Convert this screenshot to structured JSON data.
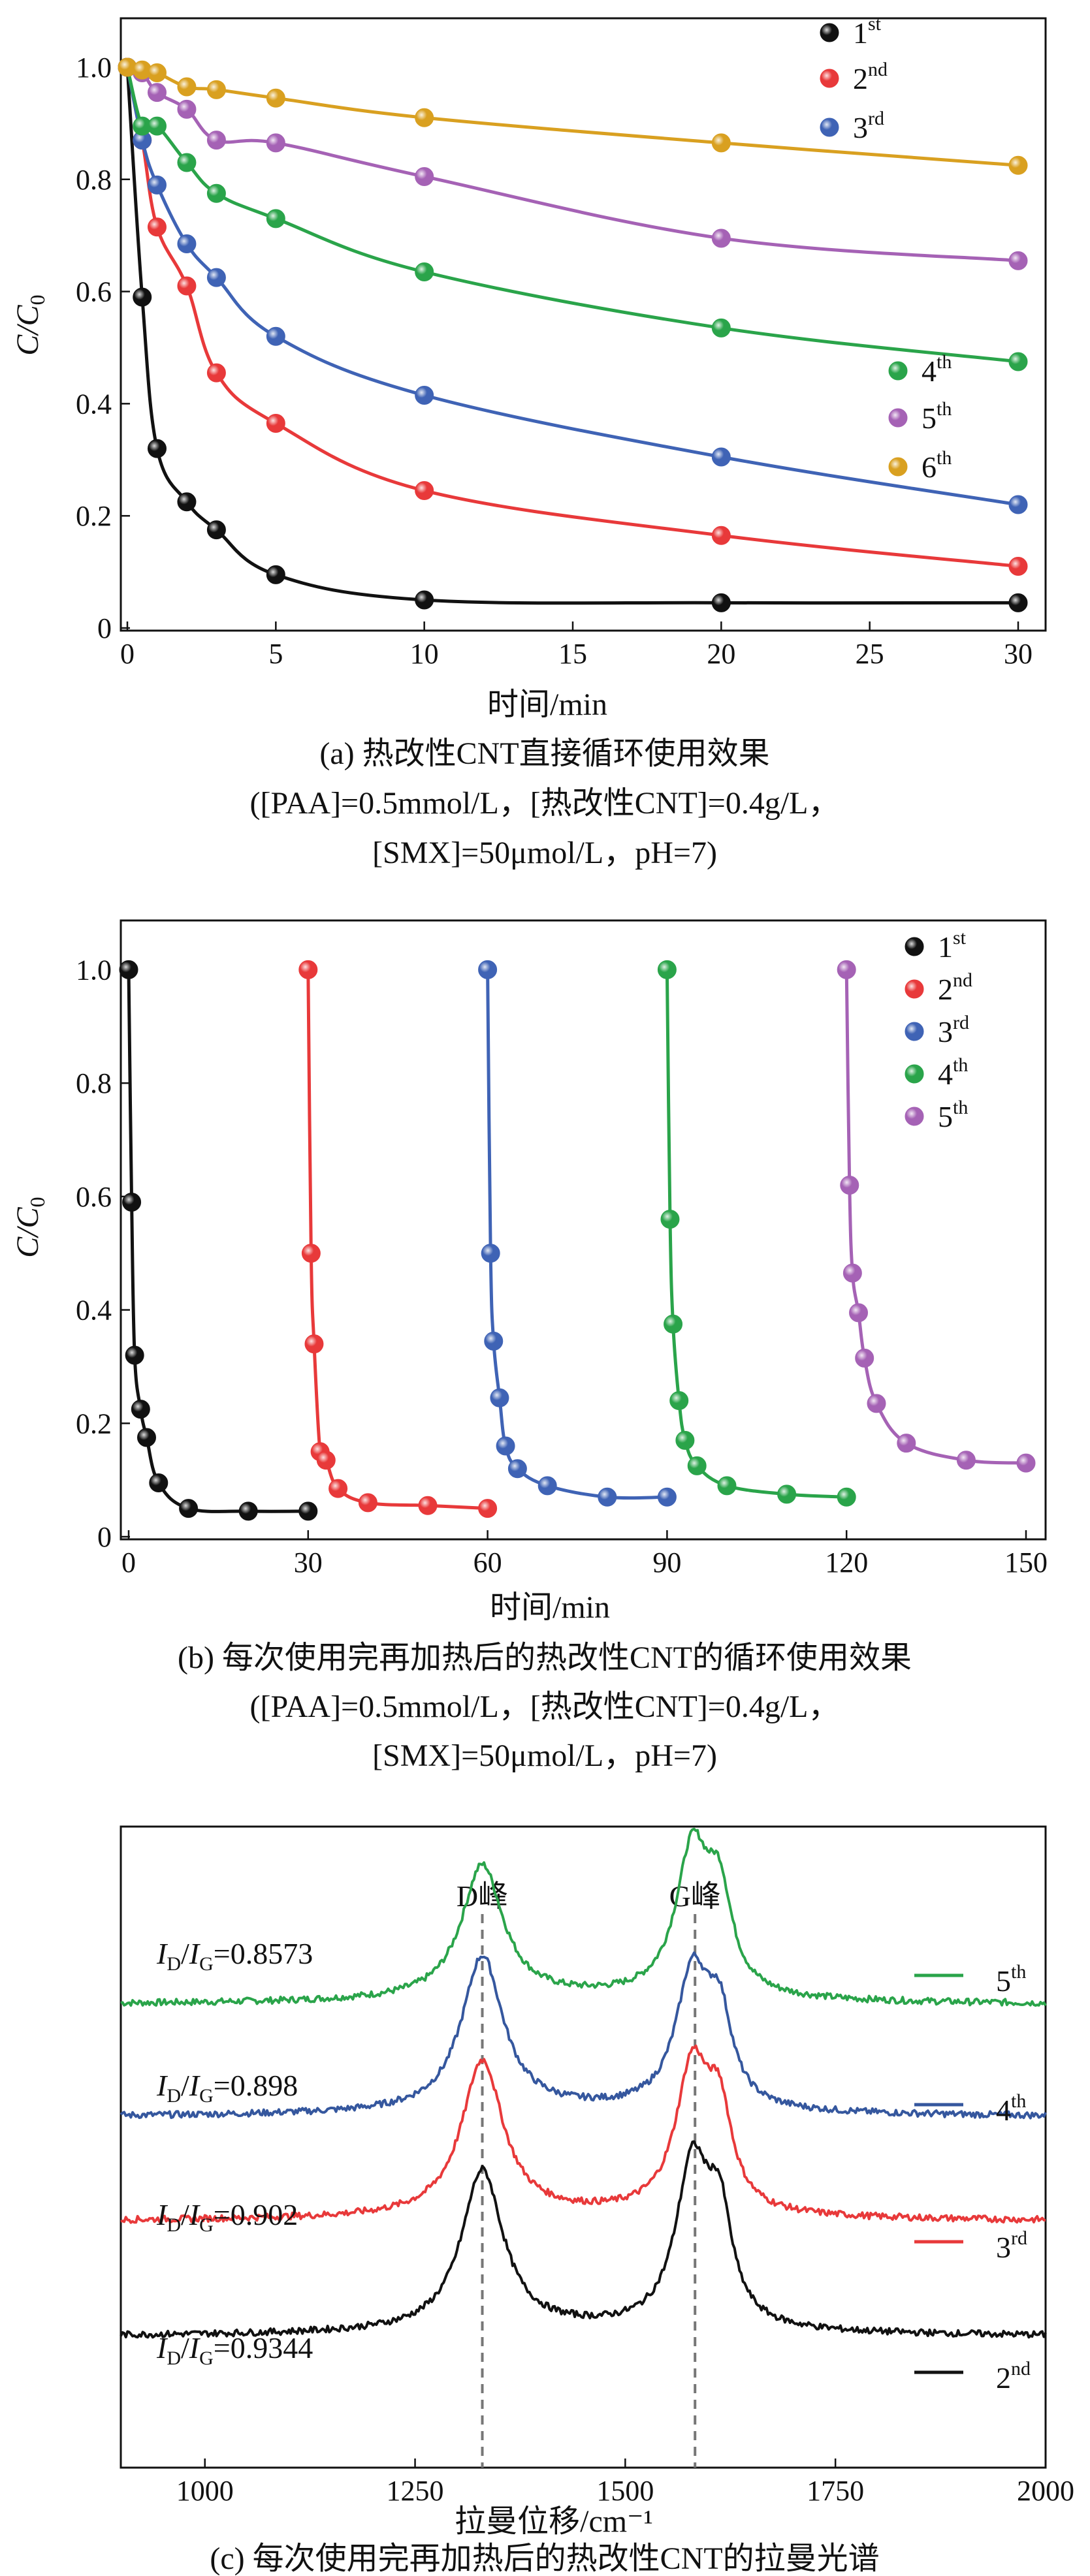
{
  "chart_data": [
    {
      "type": "line",
      "panel": "a",
      "title": "(a) 热改性CNT直接循环使用效果",
      "subtitle_line1": "([PAA]=0.5mmol/L，[热改性CNT]=0.4g/L，",
      "subtitle_line2": "[SMX]=50μmol/L，pH=7)",
      "xlabel": "时间/min",
      "ylabel_main": "C/C",
      "ylabel_sub": "0",
      "xlim": [
        0,
        30
      ],
      "ylim": [
        0,
        1.05
      ],
      "xticks": [
        0,
        5,
        10,
        15,
        20,
        25,
        30
      ],
      "yticks": [
        0,
        0.2,
        0.4,
        0.6,
        0.8,
        1.0
      ],
      "xtick_labels": [
        "0",
        "5",
        "10",
        "15",
        "20",
        "25",
        "30"
      ],
      "ytick_labels": [
        "0",
        "0.2",
        "0.4",
        "0.6",
        "0.8",
        "1.0"
      ],
      "series": [
        {
          "name": "1",
          "sup": "st",
          "color": "#111111",
          "x": [
            0,
            0.5,
            1,
            2,
            3,
            5,
            10,
            20,
            30
          ],
          "y": [
            1.0,
            0.59,
            0.32,
            0.225,
            0.175,
            0.095,
            0.05,
            0.045,
            0.045
          ]
        },
        {
          "name": "2",
          "sup": "nd",
          "color": "#e8393a",
          "x": [
            0,
            0.5,
            1,
            2,
            3,
            5,
            10,
            20,
            30
          ],
          "y": [
            1.0,
            0.87,
            0.715,
            0.61,
            0.455,
            0.365,
            0.245,
            0.165,
            0.11
          ]
        },
        {
          "name": "3",
          "sup": "rd",
          "color": "#3f63b5",
          "x": [
            0,
            0.5,
            1,
            2,
            3,
            5,
            10,
            20,
            30
          ],
          "y": [
            1.0,
            0.87,
            0.79,
            0.685,
            0.625,
            0.52,
            0.415,
            0.305,
            0.22
          ]
        },
        {
          "name": "4",
          "sup": "th",
          "color": "#2aa44a",
          "x": [
            0,
            0.5,
            1,
            2,
            3,
            5,
            10,
            20,
            30
          ],
          "y": [
            1.0,
            0.895,
            0.895,
            0.83,
            0.775,
            0.73,
            0.635,
            0.535,
            0.475
          ]
        },
        {
          "name": "5",
          "sup": "th",
          "color": "#a562b5",
          "x": [
            0,
            0.5,
            1,
            2,
            3,
            5,
            10,
            20,
            30
          ],
          "y": [
            1.0,
            0.99,
            0.955,
            0.925,
            0.87,
            0.865,
            0.805,
            0.695,
            0.655
          ]
        },
        {
          "name": "6",
          "sup": "th",
          "color": "#d9a020",
          "x": [
            0,
            0.5,
            1,
            2,
            3,
            5,
            10,
            20,
            30
          ],
          "y": [
            1.0,
            0.995,
            0.99,
            0.965,
            0.96,
            0.945,
            0.91,
            0.865,
            0.825
          ]
        }
      ]
    },
    {
      "type": "line",
      "panel": "b",
      "title": "(b) 每次使用完再加热后的热改性CNT的循环使用效果",
      "subtitle_line1": "([PAA]=0.5mmol/L，[热改性CNT]=0.4g/L，",
      "subtitle_line2": "[SMX]=50μmol/L，pH=7)",
      "xlabel": "时间/min",
      "ylabel_main": "C/C",
      "ylabel_sub": "0",
      "xlim": [
        0,
        150
      ],
      "ylim": [
        0,
        1.05
      ],
      "xticks": [
        0,
        30,
        60,
        90,
        120,
        150
      ],
      "yticks": [
        0,
        0.2,
        0.4,
        0.6,
        0.8,
        1.0
      ],
      "xtick_labels": [
        "0",
        "30",
        "60",
        "90",
        "120",
        "150"
      ],
      "ytick_labels": [
        "0",
        "0.2",
        "0.4",
        "0.6",
        "0.8",
        "1.0"
      ],
      "series": [
        {
          "name": "1",
          "sup": "st",
          "color": "#111111",
          "x": [
            0,
            0.5,
            1,
            2,
            3,
            5,
            10,
            20,
            30
          ],
          "y": [
            1.0,
            0.59,
            0.32,
            0.225,
            0.175,
            0.095,
            0.05,
            0.045,
            0.045
          ]
        },
        {
          "name": "2",
          "sup": "nd",
          "color": "#e8393a",
          "x": [
            30,
            30.5,
            31,
            32,
            33,
            35,
            40,
            50,
            60
          ],
          "y": [
            1.0,
            0.5,
            0.34,
            0.15,
            0.135,
            0.085,
            0.06,
            0.055,
            0.05
          ]
        },
        {
          "name": "3",
          "sup": "rd",
          "color": "#3f63b5",
          "x": [
            60,
            60.5,
            61,
            62,
            63,
            65,
            70,
            80,
            90
          ],
          "y": [
            1.0,
            0.5,
            0.345,
            0.245,
            0.16,
            0.12,
            0.09,
            0.07,
            0.07
          ]
        },
        {
          "name": "4",
          "sup": "th",
          "color": "#2aa44a",
          "x": [
            90,
            90.5,
            91,
            92,
            93,
            95,
            100,
            110,
            120
          ],
          "y": [
            1.0,
            0.56,
            0.375,
            0.24,
            0.17,
            0.125,
            0.09,
            0.075,
            0.07
          ]
        },
        {
          "name": "5",
          "sup": "th",
          "color": "#a562b5",
          "x": [
            120,
            120.5,
            121,
            122,
            123,
            125,
            130,
            140,
            150
          ],
          "y": [
            1.0,
            0.62,
            0.465,
            0.395,
            0.315,
            0.235,
            0.165,
            0.135,
            0.13
          ]
        }
      ]
    },
    {
      "type": "line",
      "panel": "c",
      "title": "(c) 每次使用完再加热后的热改性CNT的拉曼光谱",
      "xlabel": "拉曼位移/cm⁻¹",
      "xlim": [
        900,
        2000
      ],
      "xticks": [
        1000,
        1250,
        1500,
        1750,
        2000
      ],
      "xtick_labels": [
        "1000",
        "1250",
        "1500",
        "1750",
        "2000"
      ],
      "peak_lines": [
        {
          "label": "D峰",
          "x": 1330
        },
        {
          "label": "G峰",
          "x": 1583
        }
      ],
      "series": [
        {
          "name": "5",
          "sup": "th",
          "color": "#2aa44a",
          "ratio_label": "=0.8573",
          "ratio": 0.8573,
          "baseline": 0.62,
          "D_height": 0.25,
          "G_height": 0.27
        },
        {
          "name": "4",
          "sup": "th",
          "color": "#35579e",
          "ratio_label": "=0.898",
          "ratio": 0.898,
          "baseline": 0.41,
          "D_height": 0.29,
          "G_height": 0.25
        },
        {
          "name": "3",
          "sup": "rd",
          "color": "#e8393a",
          "ratio_label": "=0.902",
          "ratio": 0.902,
          "baseline": 0.215,
          "D_height": 0.29,
          "G_height": 0.27
        },
        {
          "name": "2",
          "sup": "nd",
          "color": "#111111",
          "ratio_label": "=0.9344",
          "ratio": 0.9344,
          "baseline": 0.0,
          "D_height": 0.3,
          "G_height": 0.3
        }
      ],
      "ratio_prefix_I": "I",
      "ratio_sub_D": "D",
      "ratio_sub_G": "G"
    }
  ]
}
